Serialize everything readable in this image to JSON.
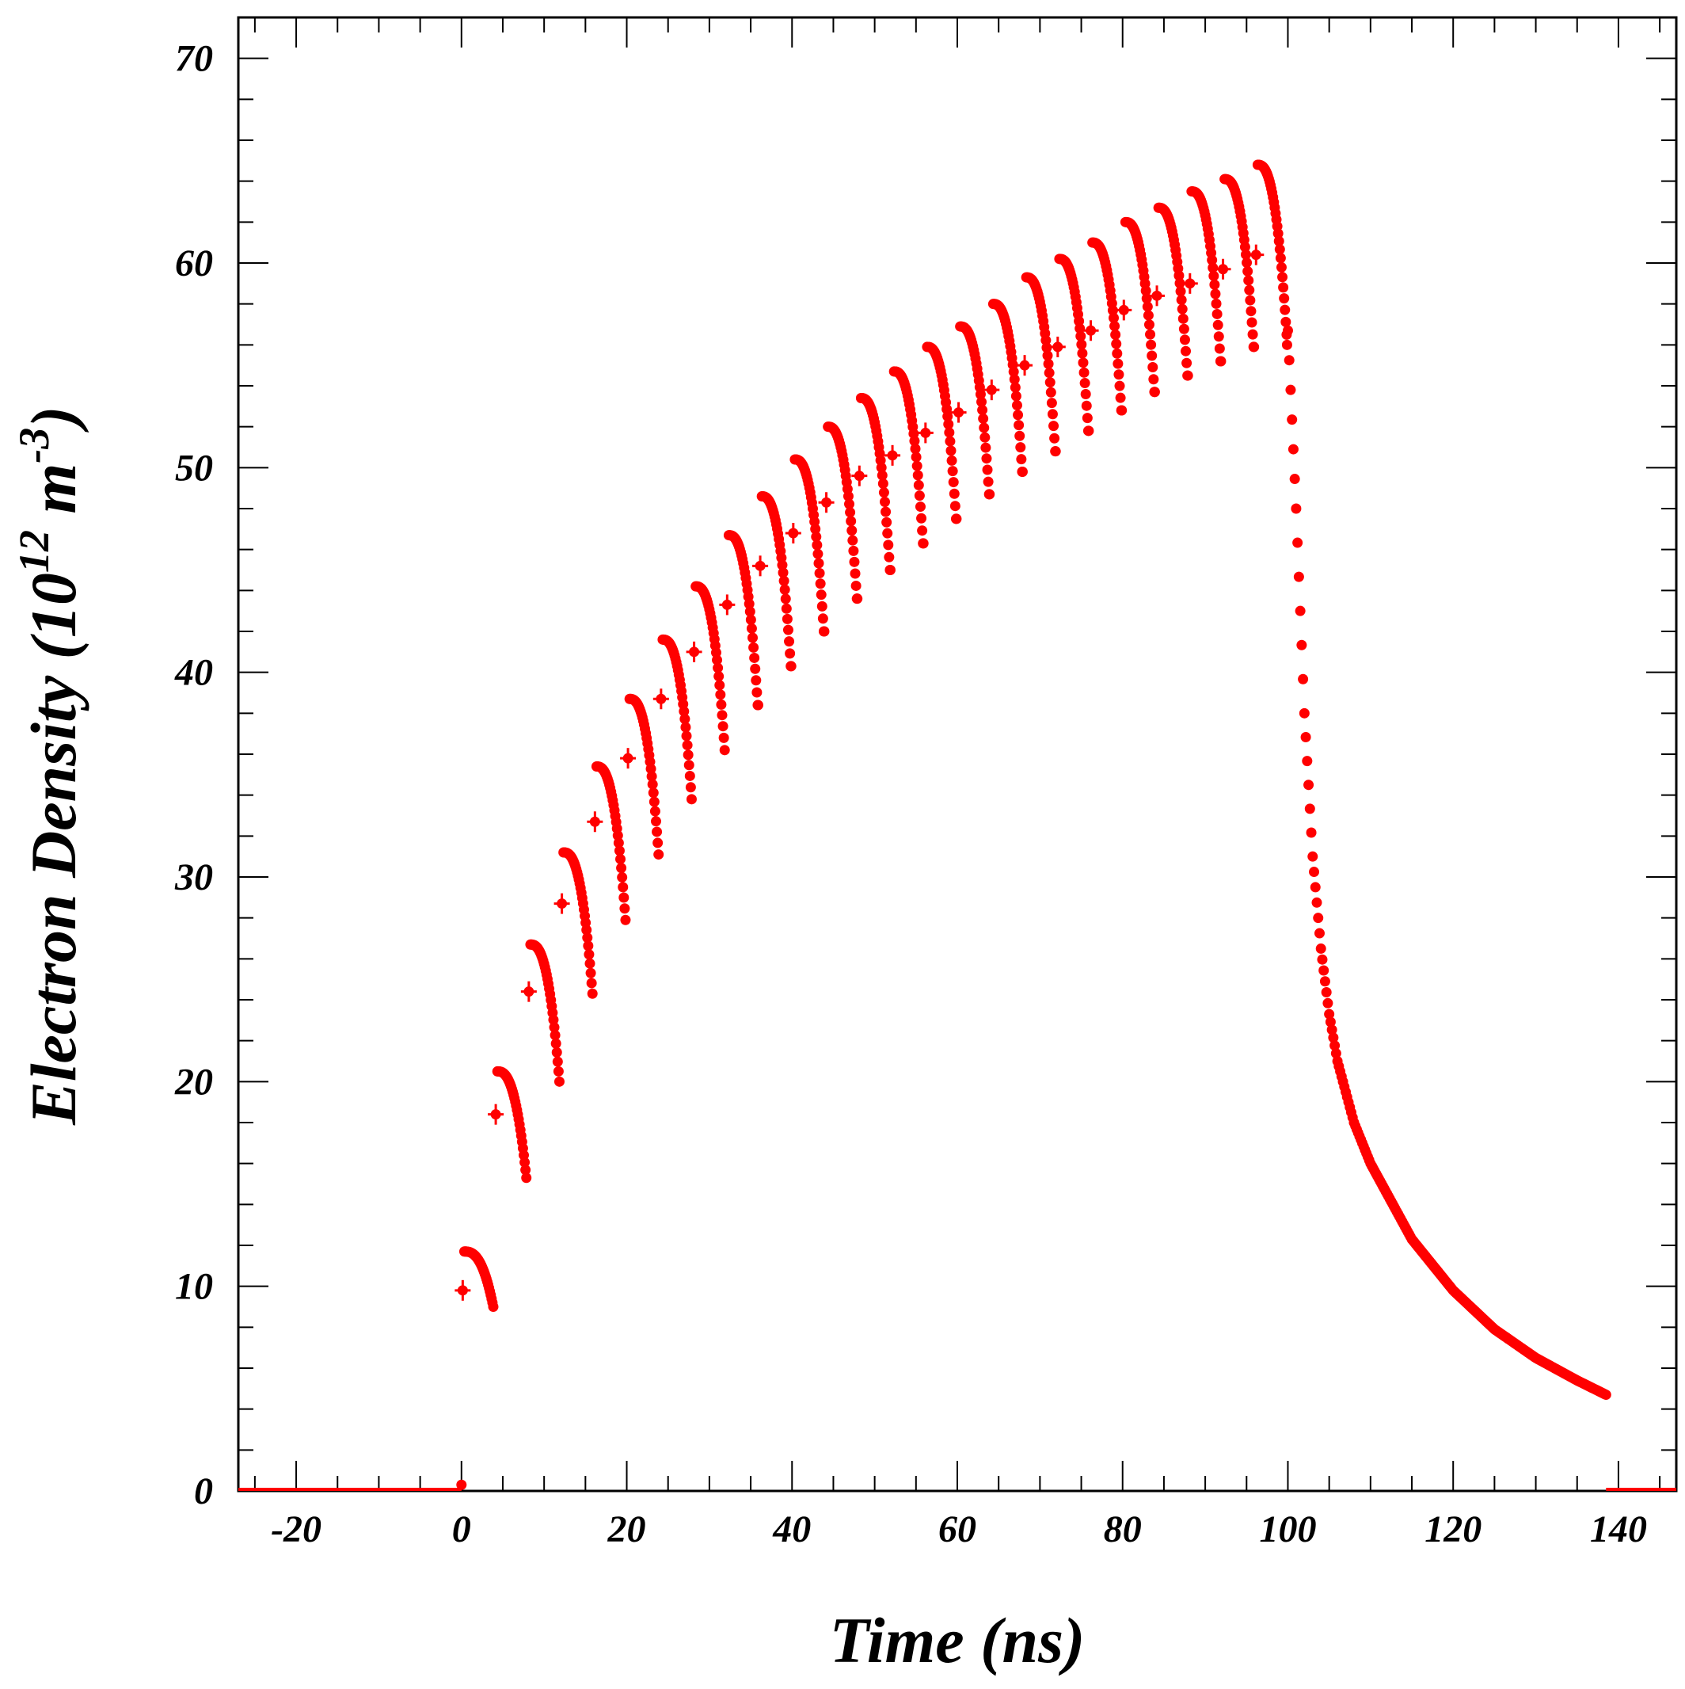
{
  "chart_data": {
    "type": "scatter",
    "title": "",
    "xlabel": "Time (ns)",
    "ylabel_parts": {
      "main": "Electron Density (10",
      "exp1": "12",
      "unit": " m",
      "exp2": "-3",
      "close": ")"
    },
    "xlim": [
      -27,
      147
    ],
    "ylim": [
      0,
      72
    ],
    "x_ticks": [
      -20,
      0,
      20,
      40,
      60,
      80,
      100,
      120,
      140
    ],
    "y_ticks": [
      0,
      10,
      20,
      30,
      40,
      50,
      60,
      70
    ],
    "x_tick_labels": [
      "-20",
      "0",
      "20",
      "40",
      "60",
      "80",
      "100",
      "120",
      "140"
    ],
    "y_tick_labels": [
      "0",
      "10",
      "20",
      "30",
      "40",
      "50",
      "60",
      "70"
    ],
    "grid": false,
    "series_color": "#ff0000",
    "pulse": {
      "period_ns": 4,
      "count": 25,
      "start_ns": 0,
      "end_ns": 100,
      "peak_values": [
        11.7,
        20.5,
        26.7,
        31.2,
        35.4,
        38.7,
        41.6,
        44.2,
        46.7,
        48.6,
        50.4,
        52.0,
        53.4,
        54.7,
        55.9,
        56.9,
        58.0,
        59.3,
        60.2,
        61.0,
        62.0,
        62.7,
        63.5,
        64.1,
        64.8
      ],
      "mean_values": [
        9.8,
        18.4,
        24.4,
        28.7,
        32.7,
        35.8,
        38.7,
        41.0,
        43.3,
        45.2,
        46.8,
        48.3,
        49.6,
        50.6,
        51.7,
        52.7,
        53.8,
        55.0,
        55.9,
        56.7,
        57.7,
        58.4,
        59.0,
        59.7,
        60.4
      ],
      "drop_values": [
        9.0,
        15.3,
        20.0,
        24.3,
        27.9,
        31.1,
        33.8,
        36.2,
        38.4,
        40.3,
        42.0,
        43.6,
        45.0,
        46.3,
        47.5,
        48.7,
        49.8,
        50.8,
        51.8,
        52.8,
        53.7,
        54.5,
        55.2,
        55.9,
        56.5
      ],
      "lower_dot_values": [
        null,
        null,
        null,
        null,
        null,
        null,
        null,
        null,
        38.4,
        40.3,
        42.0,
        43.6,
        45.0,
        46.3,
        47.5,
        48.7,
        49.8,
        50.8,
        51.8,
        52.8,
        53.7,
        54.5,
        55.2,
        55.9,
        56.0
      ]
    },
    "decay": {
      "start_x": 100,
      "start_y": 56.7,
      "points": [
        [
          100,
          56.7
        ],
        [
          101,
          48.0
        ],
        [
          102,
          38.0
        ],
        [
          103,
          31.0
        ],
        [
          104,
          26.5
        ],
        [
          105,
          23.3
        ],
        [
          106,
          21.0
        ],
        [
          108,
          18.0
        ],
        [
          110,
          16.0
        ],
        [
          115,
          12.3
        ],
        [
          120,
          9.8
        ],
        [
          125,
          7.9
        ],
        [
          130,
          6.5
        ],
        [
          135,
          5.4
        ],
        [
          138.5,
          4.7
        ]
      ]
    },
    "baseline": {
      "x": [
        -27,
        0
      ],
      "y": 0
    },
    "origin_point": [
      0,
      0.3
    ]
  }
}
